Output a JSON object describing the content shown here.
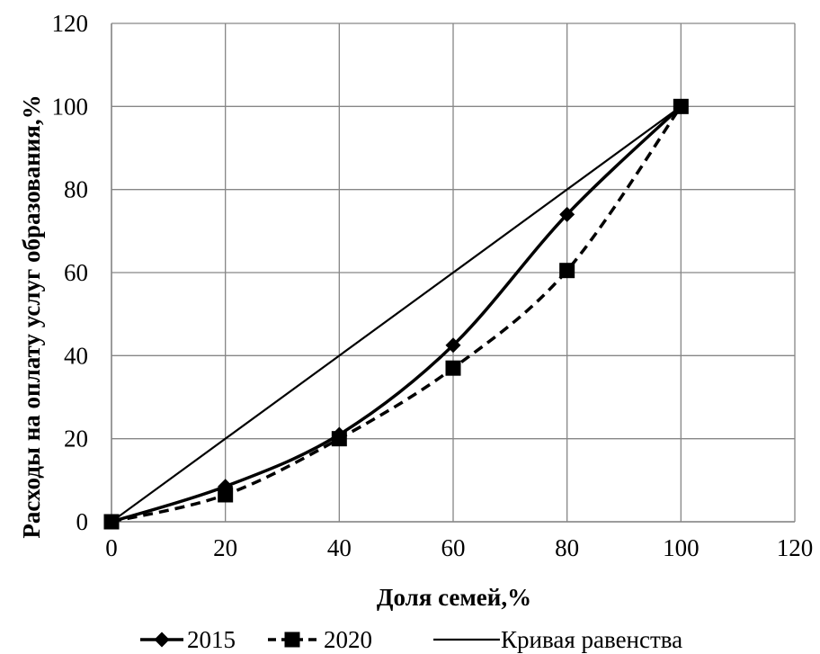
{
  "chart_data": {
    "type": "line",
    "xlabel": "Доля семей,%",
    "ylabel": "Расходы на оплату услуг образования,%",
    "xlim": [
      0,
      120
    ],
    "ylim": [
      0,
      120
    ],
    "x_ticks": [
      "0",
      "20",
      "40",
      "60",
      "80",
      "100",
      "120"
    ],
    "y_ticks": [
      "0",
      "20",
      "40",
      "60",
      "80",
      "100",
      "120"
    ],
    "grid": true,
    "legend_position": "bottom",
    "series": [
      {
        "name": "2015",
        "style": "solid-smooth",
        "marker": "diamond",
        "x": [
          0,
          20,
          40,
          60,
          80,
          100
        ],
        "y": [
          0,
          8.5,
          21,
          42.5,
          74,
          100
        ]
      },
      {
        "name": "2020",
        "style": "dashed-smooth",
        "marker": "square",
        "x": [
          0,
          20,
          40,
          60,
          80,
          100
        ],
        "y": [
          0,
          6.5,
          20,
          37,
          60.5,
          100
        ]
      },
      {
        "name": "Кривая равенства",
        "style": "solid-thin",
        "marker": "none",
        "x": [
          0,
          20,
          40,
          60,
          80,
          100
        ],
        "y": [
          0,
          20,
          40,
          60,
          80,
          100
        ]
      }
    ]
  }
}
